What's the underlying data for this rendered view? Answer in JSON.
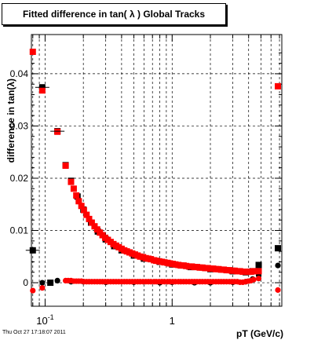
{
  "chart_data": {
    "type": "scatter",
    "title": "Fitted difference in tan( λ )  Global Tracks",
    "xlabel": "pT (GeV/c)",
    "ylabel": "difference in tan(λ)",
    "x_scale": "log",
    "xlim": [
      0.078,
      7.3
    ],
    "ylim": [
      -0.0045,
      0.0475
    ],
    "grid": true,
    "x_ticks": [
      {
        "value": 0.1,
        "base": "10",
        "exp": "-1"
      },
      {
        "value": 1,
        "base": "1",
        "exp": ""
      }
    ],
    "y_ticks": [
      {
        "value": 0,
        "label": "0"
      },
      {
        "value": 0.01,
        "label": "0.01"
      },
      {
        "value": 0.02,
        "label": "0.02"
      },
      {
        "value": 0.03,
        "label": "0.03"
      },
      {
        "value": 0.04,
        "label": "0.04"
      }
    ],
    "series": [
      {
        "marker": "square",
        "color": "#000000",
        "points": [
          [
            0.08,
            0.0062
          ],
          [
            0.095,
            0.0374
          ],
          [
            0.11,
            0.0
          ],
          [
            0.125,
            0.029
          ],
          [
            0.145,
            0.0225
          ],
          [
            0.16,
            0.0195
          ],
          [
            0.18,
            0.0165
          ],
          [
            0.2,
            0.014
          ],
          [
            0.23,
            0.0115
          ],
          [
            0.26,
            0.0098
          ],
          [
            0.3,
            0.0083
          ],
          [
            0.35,
            0.007
          ],
          [
            0.4,
            0.0062
          ],
          [
            0.5,
            0.0052
          ],
          [
            0.6,
            0.0046
          ],
          [
            0.8,
            0.004
          ],
          [
            1.0,
            0.0035
          ],
          [
            1.4,
            0.003
          ],
          [
            2.0,
            0.0026
          ],
          [
            3.0,
            0.0022
          ],
          [
            3.8,
            0.002
          ],
          [
            4.3,
            0.0022
          ],
          [
            4.8,
            0.0034
          ],
          [
            6.8,
            0.0066
          ]
        ]
      },
      {
        "marker": "circle",
        "color": "#000000",
        "points": [
          [
            0.08,
            0.0062
          ],
          [
            0.095,
            0.0
          ],
          [
            0.125,
            0.0004
          ],
          [
            0.16,
            0.0002
          ],
          [
            0.2,
            0.0002
          ],
          [
            0.3,
            0.0001
          ],
          [
            0.5,
            0.0001
          ],
          [
            0.8,
            0.0
          ],
          [
            1.0,
            0.0001
          ],
          [
            1.5,
            0.0
          ],
          [
            2.0,
            0.0
          ],
          [
            3.0,
            0.0001
          ],
          [
            3.8,
            0.0002
          ],
          [
            4.3,
            0.0007
          ],
          [
            4.8,
            0.0014
          ],
          [
            6.8,
            0.0033
          ]
        ]
      },
      {
        "marker": "square",
        "color": "#ff0000",
        "points": [
          [
            0.08,
            0.0442
          ],
          [
            0.095,
            0.0368
          ],
          [
            0.125,
            0.0289
          ],
          [
            0.145,
            0.0224
          ],
          [
            0.16,
            0.0193
          ],
          [
            0.168,
            0.018
          ],
          [
            0.176,
            0.0167
          ],
          [
            0.184,
            0.0156
          ],
          [
            0.193,
            0.0147
          ],
          [
            0.202,
            0.0139
          ],
          [
            0.212,
            0.013
          ],
          [
            0.222,
            0.0122
          ],
          [
            0.233,
            0.0115
          ],
          [
            0.245,
            0.0108
          ],
          [
            0.257,
            0.0102
          ],
          [
            0.27,
            0.0096
          ],
          [
            0.283,
            0.0091
          ],
          [
            0.297,
            0.0086
          ],
          [
            0.312,
            0.0082
          ],
          [
            0.328,
            0.0078
          ],
          [
            0.345,
            0.0074
          ],
          [
            0.362,
            0.0071
          ],
          [
            0.38,
            0.0068
          ],
          [
            0.4,
            0.0065
          ],
          [
            0.42,
            0.0062
          ],
          [
            0.44,
            0.006
          ],
          [
            0.462,
            0.0058
          ],
          [
            0.485,
            0.0056
          ],
          [
            0.51,
            0.0054
          ],
          [
            0.535,
            0.0052
          ],
          [
            0.56,
            0.005
          ],
          [
            0.59,
            0.0049
          ],
          [
            0.62,
            0.0047
          ],
          [
            0.65,
            0.0046
          ],
          [
            0.68,
            0.0045
          ],
          [
            0.72,
            0.0043
          ],
          [
            0.75,
            0.0042
          ],
          [
            0.79,
            0.0041
          ],
          [
            0.83,
            0.004
          ],
          [
            0.87,
            0.0039
          ],
          [
            0.92,
            0.0038
          ],
          [
            0.96,
            0.0037
          ],
          [
            1.01,
            0.0036
          ],
          [
            1.06,
            0.0035
          ],
          [
            1.12,
            0.0034
          ],
          [
            1.17,
            0.0033
          ],
          [
            1.23,
            0.0033
          ],
          [
            1.29,
            0.0032
          ],
          [
            1.36,
            0.0031
          ],
          [
            1.43,
            0.0031
          ],
          [
            1.5,
            0.003
          ],
          [
            1.57,
            0.003
          ],
          [
            1.65,
            0.0029
          ],
          [
            1.73,
            0.0029
          ],
          [
            1.82,
            0.0028
          ],
          [
            1.91,
            0.0028
          ],
          [
            2.0,
            0.0027
          ],
          [
            2.1,
            0.0027
          ],
          [
            2.21,
            0.0026
          ],
          [
            2.32,
            0.0026
          ],
          [
            2.43,
            0.0025
          ],
          [
            2.55,
            0.0025
          ],
          [
            2.68,
            0.0024
          ],
          [
            2.82,
            0.0024
          ],
          [
            2.96,
            0.0023
          ],
          [
            3.1,
            0.0023
          ],
          [
            3.26,
            0.0022
          ],
          [
            3.42,
            0.0022
          ],
          [
            3.6,
            0.0021
          ],
          [
            3.78,
            0.0021
          ],
          [
            3.97,
            0.0021
          ],
          [
            4.17,
            0.0021
          ],
          [
            4.38,
            0.0022
          ],
          [
            4.8,
            0.0022
          ],
          [
            6.8,
            0.0376
          ]
        ]
      },
      {
        "marker": "circle",
        "color": "#ff0000",
        "points": [
          [
            0.08,
            -0.0015
          ],
          [
            0.095,
            -0.001
          ],
          [
            0.145,
            0.0004
          ],
          [
            0.152,
            0.0004
          ],
          [
            0.16,
            0.0004
          ],
          [
            0.168,
            0.0003
          ],
          [
            0.176,
            0.0003
          ],
          [
            0.184,
            0.0003
          ],
          [
            0.193,
            0.0003
          ],
          [
            0.202,
            0.0002
          ],
          [
            0.212,
            0.0002
          ],
          [
            0.222,
            0.0002
          ],
          [
            0.233,
            0.0002
          ],
          [
            0.245,
            0.0002
          ],
          [
            0.257,
            0.0002
          ],
          [
            0.27,
            0.0002
          ],
          [
            0.283,
            0.0002
          ],
          [
            0.297,
            0.0002
          ],
          [
            0.312,
            0.0002
          ],
          [
            0.328,
            0.0002
          ],
          [
            0.345,
            0.0002
          ],
          [
            0.362,
            0.0002
          ],
          [
            0.38,
            0.0002
          ],
          [
            0.4,
            0.0002
          ],
          [
            0.42,
            0.0002
          ],
          [
            0.44,
            0.0002
          ],
          [
            0.462,
            0.0002
          ],
          [
            0.485,
            0.0002
          ],
          [
            0.51,
            0.0002
          ],
          [
            0.535,
            0.0002
          ],
          [
            0.56,
            0.0002
          ],
          [
            0.59,
            0.0002
          ],
          [
            0.62,
            0.0002
          ],
          [
            0.65,
            0.0002
          ],
          [
            0.68,
            0.0002
          ],
          [
            0.72,
            0.0002
          ],
          [
            0.75,
            0.0002
          ],
          [
            0.79,
            0.0002
          ],
          [
            0.83,
            0.0002
          ],
          [
            0.87,
            0.0002
          ],
          [
            0.92,
            0.0002
          ],
          [
            0.96,
            0.0002
          ],
          [
            1.01,
            0.0002
          ],
          [
            1.06,
            0.0002
          ],
          [
            1.12,
            0.0002
          ],
          [
            1.17,
            0.0002
          ],
          [
            1.23,
            0.0002
          ],
          [
            1.29,
            0.0002
          ],
          [
            1.36,
            0.0002
          ],
          [
            1.43,
            0.0002
          ],
          [
            1.5,
            0.0002
          ],
          [
            1.57,
            0.0002
          ],
          [
            1.65,
            0.0002
          ],
          [
            1.73,
            0.0002
          ],
          [
            1.82,
            0.0002
          ],
          [
            1.91,
            0.0002
          ],
          [
            2.0,
            0.0002
          ],
          [
            2.1,
            0.0002
          ],
          [
            2.21,
            0.0002
          ],
          [
            2.32,
            0.0002
          ],
          [
            2.43,
            0.0002
          ],
          [
            2.55,
            0.0002
          ],
          [
            2.68,
            0.0002
          ],
          [
            2.82,
            0.0002
          ],
          [
            2.96,
            0.0002
          ],
          [
            3.1,
            0.0002
          ],
          [
            3.26,
            0.0002
          ],
          [
            3.42,
            0.0001
          ],
          [
            3.6,
            0.0001
          ],
          [
            3.78,
            0.0002
          ],
          [
            3.97,
            0.0003
          ],
          [
            4.17,
            0.0004
          ],
          [
            4.38,
            0.0006
          ],
          [
            4.8,
            0.0008
          ],
          [
            6.8,
            -0.0014
          ]
        ]
      }
    ]
  },
  "footer": {
    "timestamp": "Thu Oct 27 17:18:07 2011"
  }
}
